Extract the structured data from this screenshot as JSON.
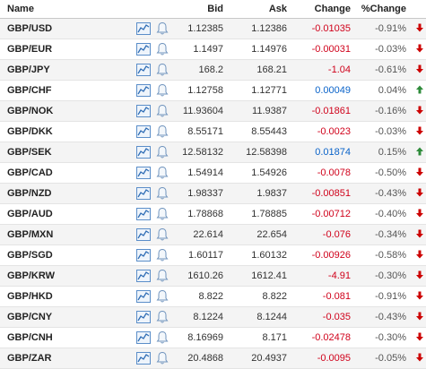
{
  "header": {
    "name": "Name",
    "bid": "Bid",
    "ask": "Ask",
    "change": "Change",
    "pct": "%Change"
  },
  "colors": {
    "negative": "#d0021b",
    "positive": "#0a63c9",
    "down_arrow": "#cc0000",
    "up_arrow": "#2e8b3a"
  },
  "rows": [
    {
      "name": "GBP/USD",
      "bid": "1.12385",
      "ask": "1.12386",
      "change": "-0.01035",
      "pct": "-0.91%",
      "dir": "down"
    },
    {
      "name": "GBP/EUR",
      "bid": "1.1497",
      "ask": "1.14976",
      "change": "-0.00031",
      "pct": "-0.03%",
      "dir": "down"
    },
    {
      "name": "GBP/JPY",
      "bid": "168.2",
      "ask": "168.21",
      "change": "-1.04",
      "pct": "-0.61%",
      "dir": "down"
    },
    {
      "name": "GBP/CHF",
      "bid": "1.12758",
      "ask": "1.12771",
      "change": "0.00049",
      "pct": "0.04%",
      "dir": "up"
    },
    {
      "name": "GBP/NOK",
      "bid": "11.93604",
      "ask": "11.9387",
      "change": "-0.01861",
      "pct": "-0.16%",
      "dir": "down"
    },
    {
      "name": "GBP/DKK",
      "bid": "8.55171",
      "ask": "8.55443",
      "change": "-0.0023",
      "pct": "-0.03%",
      "dir": "down"
    },
    {
      "name": "GBP/SEK",
      "bid": "12.58132",
      "ask": "12.58398",
      "change": "0.01874",
      "pct": "0.15%",
      "dir": "up"
    },
    {
      "name": "GBP/CAD",
      "bid": "1.54914",
      "ask": "1.54926",
      "change": "-0.0078",
      "pct": "-0.50%",
      "dir": "down"
    },
    {
      "name": "GBP/NZD",
      "bid": "1.98337",
      "ask": "1.9837",
      "change": "-0.00851",
      "pct": "-0.43%",
      "dir": "down"
    },
    {
      "name": "GBP/AUD",
      "bid": "1.78868",
      "ask": "1.78885",
      "change": "-0.00712",
      "pct": "-0.40%",
      "dir": "down"
    },
    {
      "name": "GBP/MXN",
      "bid": "22.614",
      "ask": "22.654",
      "change": "-0.076",
      "pct": "-0.34%",
      "dir": "down"
    },
    {
      "name": "GBP/SGD",
      "bid": "1.60117",
      "ask": "1.60132",
      "change": "-0.00926",
      "pct": "-0.58%",
      "dir": "down"
    },
    {
      "name": "GBP/KRW",
      "bid": "1610.26",
      "ask": "1612.41",
      "change": "-4.91",
      "pct": "-0.30%",
      "dir": "down"
    },
    {
      "name": "GBP/HKD",
      "bid": "8.822",
      "ask": "8.822",
      "change": "-0.081",
      "pct": "-0.91%",
      "dir": "down"
    },
    {
      "name": "GBP/CNY",
      "bid": "8.1224",
      "ask": "8.1244",
      "change": "-0.035",
      "pct": "-0.43%",
      "dir": "down"
    },
    {
      "name": "GBP/CNH",
      "bid": "8.16969",
      "ask": "8.171",
      "change": "-0.02478",
      "pct": "-0.30%",
      "dir": "down"
    },
    {
      "name": "GBP/ZAR",
      "bid": "20.4868",
      "ask": "20.4937",
      "change": "-0.0095",
      "pct": "-0.05%",
      "dir": "down"
    }
  ]
}
